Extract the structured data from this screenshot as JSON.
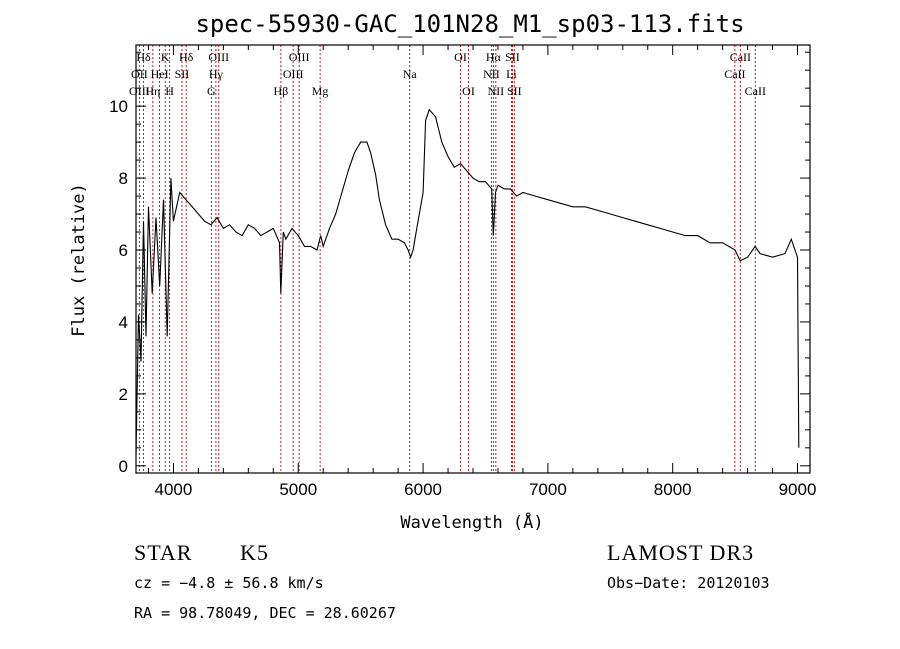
{
  "chart_data": {
    "type": "line",
    "title": "spec-55930-GAC_101N28_M1_sp03-113.fits",
    "xlabel": "Wavelength (Å)",
    "ylabel": "Flux (relative)",
    "xlim": [
      3700,
      9100
    ],
    "ylim": [
      -0.2,
      11.7
    ],
    "xticks": [
      4000,
      5000,
      6000,
      7000,
      8000,
      9000
    ],
    "yticks": [
      0,
      2,
      4,
      6,
      8,
      10
    ],
    "series": [
      {
        "name": "flux",
        "x": [
          3700,
          3720,
          3740,
          3760,
          3780,
          3800,
          3830,
          3860,
          3890,
          3920,
          3950,
          3980,
          4000,
          4050,
          4100,
          4150,
          4200,
          4250,
          4300,
          4350,
          4400,
          4450,
          4500,
          4550,
          4600,
          4650,
          4700,
          4750,
          4800,
          4850,
          4860,
          4880,
          4900,
          4950,
          5000,
          5050,
          5100,
          5150,
          5180,
          5200,
          5250,
          5300,
          5350,
          5400,
          5450,
          5500,
          5550,
          5580,
          5600,
          5620,
          5650,
          5700,
          5750,
          5800,
          5850,
          5880,
          5900,
          5920,
          5950,
          6000,
          6020,
          6050,
          6100,
          6150,
          6200,
          6250,
          6300,
          6350,
          6400,
          6450,
          6500,
          6550,
          6563,
          6580,
          6600,
          6650,
          6700,
          6750,
          6800,
          6900,
          7000,
          7100,
          7200,
          7300,
          7400,
          7500,
          7600,
          7700,
          7800,
          7900,
          8000,
          8100,
          8200,
          8300,
          8400,
          8500,
          8540,
          8600,
          8660,
          8700,
          8800,
          8900,
          8950,
          9000,
          9010
        ],
        "y": [
          0.3,
          4.2,
          2.9,
          6.8,
          3.6,
          7.2,
          4.8,
          6.9,
          5.0,
          7.4,
          3.6,
          8.0,
          6.8,
          7.6,
          7.4,
          7.2,
          7.0,
          6.8,
          6.7,
          6.9,
          6.6,
          6.7,
          6.5,
          6.4,
          6.7,
          6.6,
          6.4,
          6.5,
          6.6,
          6.2,
          4.8,
          6.5,
          6.3,
          6.6,
          6.4,
          6.1,
          6.1,
          6.0,
          6.4,
          6.1,
          6.6,
          7.0,
          7.6,
          8.2,
          8.7,
          9.0,
          9.0,
          8.7,
          8.4,
          8.1,
          7.4,
          6.7,
          6.3,
          6.3,
          6.2,
          6.0,
          5.8,
          6.0,
          6.6,
          7.6,
          9.6,
          9.9,
          9.7,
          9.0,
          8.6,
          8.3,
          8.4,
          8.2,
          8.0,
          7.9,
          7.9,
          7.7,
          6.4,
          7.6,
          7.8,
          7.7,
          7.7,
          7.5,
          7.6,
          7.5,
          7.4,
          7.3,
          7.2,
          7.2,
          7.1,
          7.0,
          6.9,
          6.8,
          6.7,
          6.6,
          6.5,
          6.4,
          6.4,
          6.2,
          6.2,
          6.0,
          5.7,
          5.8,
          6.1,
          5.9,
          5.8,
          5.9,
          6.3,
          5.8,
          0.5
        ]
      }
    ],
    "spectral_lines": [
      {
        "name": "Hδ",
        "wavelength": 3760,
        "row": 1
      },
      {
        "name": "OII",
        "wavelength": 3727,
        "row": 2
      },
      {
        "name": "OIII",
        "wavelength": 3727,
        "row": 3
      },
      {
        "name": "K",
        "wavelength": 3934,
        "row": 1
      },
      {
        "name": "HeI",
        "wavelength": 3889,
        "row": 2
      },
      {
        "name": "Hη",
        "wavelength": 3835,
        "row": 3
      },
      {
        "name": "SII",
        "wavelength": 4068,
        "row": 2
      },
      {
        "name": "H",
        "wavelength": 3969,
        "row": 3
      },
      {
        "name": "Hδ",
        "wavelength": 4102,
        "row": 1
      },
      {
        "name": "OIII",
        "wavelength": 4363,
        "row": 1
      },
      {
        "name": "Hγ",
        "wavelength": 4340,
        "row": 2
      },
      {
        "name": "G",
        "wavelength": 4304,
        "row": 3
      },
      {
        "name": "OIII",
        "wavelength": 5007,
        "row": 1
      },
      {
        "name": "OIII",
        "wavelength": 4959,
        "row": 2
      },
      {
        "name": "Hβ",
        "wavelength": 4861,
        "row": 3
      },
      {
        "name": "Mg",
        "wavelength": 5175,
        "row": 3
      },
      {
        "name": "Na",
        "wavelength": 5893,
        "row": 2
      },
      {
        "name": "OI",
        "wavelength": 6300,
        "row": 1
      },
      {
        "name": "OI",
        "wavelength": 6364,
        "row": 3
      },
      {
        "name": "Hα",
        "wavelength": 6563,
        "row": 1
      },
      {
        "name": "NII",
        "wavelength": 6548,
        "row": 2
      },
      {
        "name": "NII",
        "wavelength": 6583,
        "row": 3
      },
      {
        "name": "SII",
        "wavelength": 6716,
        "row": 1
      },
      {
        "name": "Li",
        "wavelength": 6708,
        "row": 2
      },
      {
        "name": "SII",
        "wavelength": 6731,
        "row": 3
      },
      {
        "name": "CaII",
        "wavelength": 8542,
        "row": 1
      },
      {
        "name": "CaII",
        "wavelength": 8498,
        "row": 2
      },
      {
        "name": "CaII",
        "wavelength": 8662,
        "row": 3
      }
    ],
    "grid": false,
    "line_marker_color": "#cc0000"
  },
  "info": {
    "object_type": "STAR",
    "subclass": "K5",
    "cz": "cz = −4.8 ± 56.8 km/s",
    "coords": "RA =  98.78049, DEC =  28.60267",
    "survey": "LAMOST DR3",
    "obs_date": "Obs−Date: 20120103"
  }
}
